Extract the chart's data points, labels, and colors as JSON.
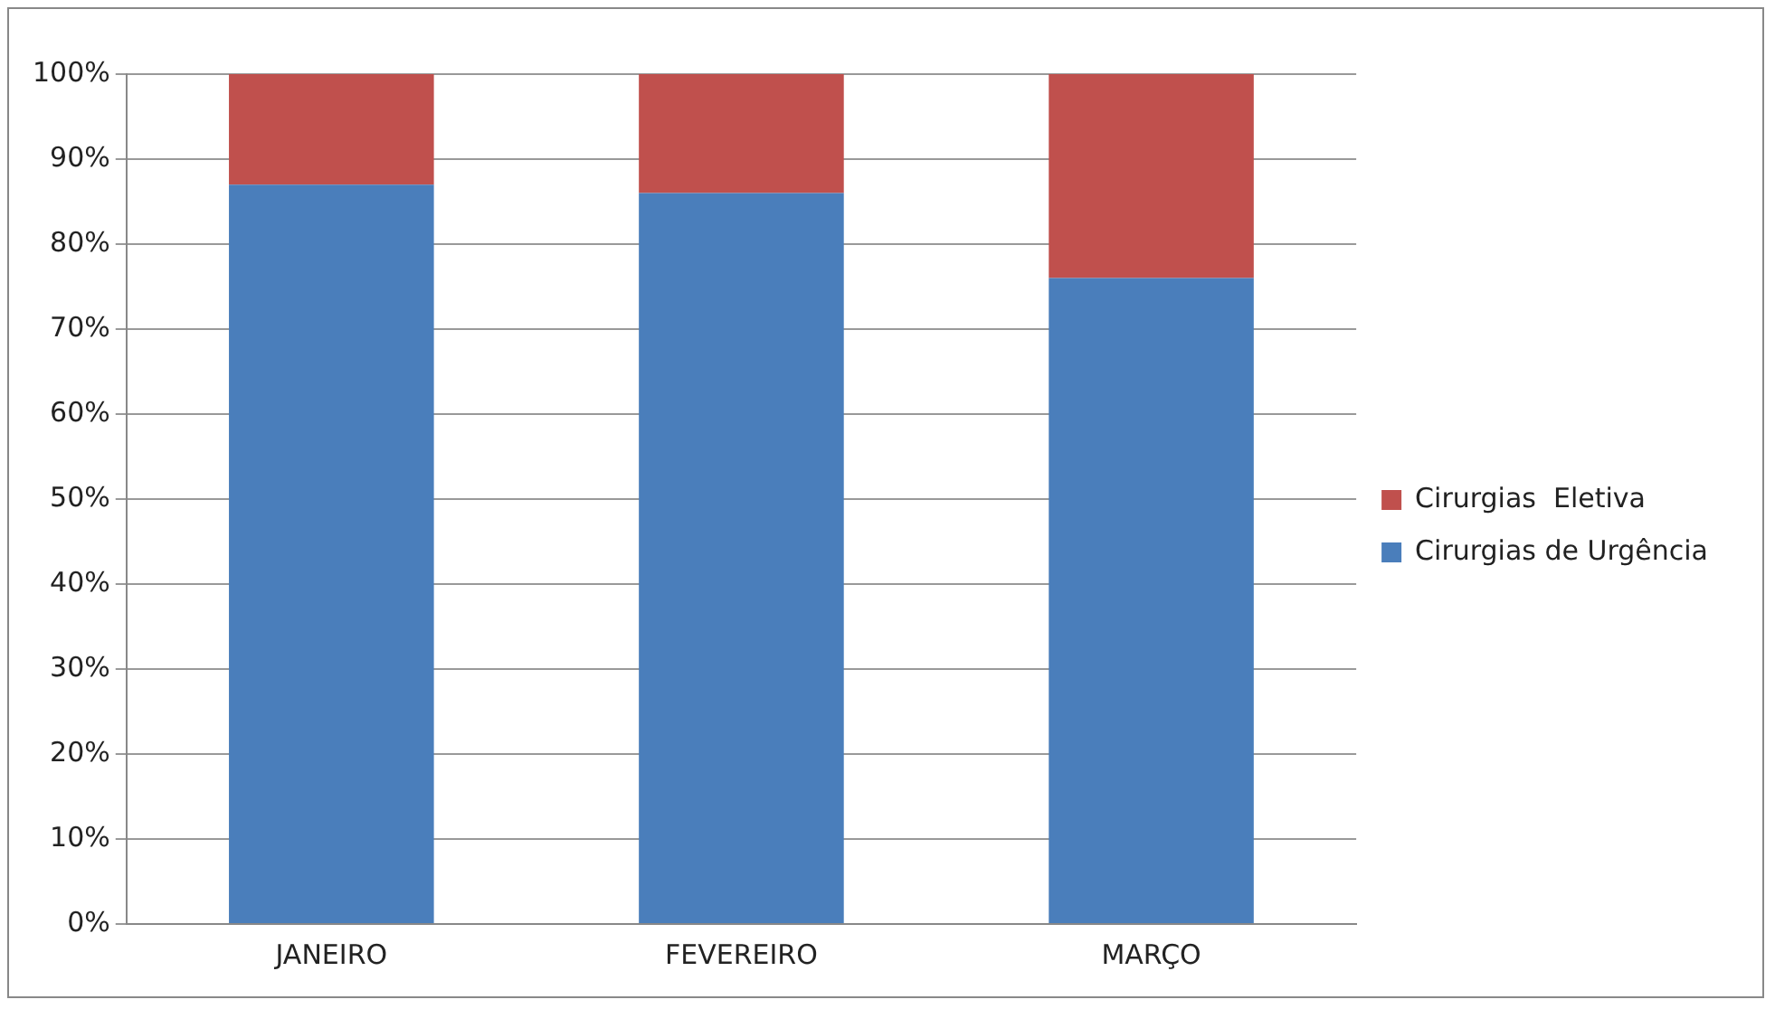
{
  "chart_data": {
    "type": "bar",
    "stacked": true,
    "categories": [
      "JANEIRO",
      "FEVEREIRO",
      "MARÇO"
    ],
    "series": [
      {
        "name": "Cirurgias de Urgência",
        "color": "#4a7ebb",
        "values": [
          87,
          86,
          76
        ]
      },
      {
        "name": "Cirurgias  Eletiva",
        "color": "#c0504d",
        "values": [
          13,
          14,
          24
        ]
      }
    ],
    "ylim": [
      0,
      100
    ],
    "yticks": [
      {
        "value": 0,
        "label": "0%"
      },
      {
        "value": 10,
        "label": "10%"
      },
      {
        "value": 20,
        "label": "20%"
      },
      {
        "value": 30,
        "label": "30%"
      },
      {
        "value": 40,
        "label": "40%"
      },
      {
        "value": 50,
        "label": "50%"
      },
      {
        "value": 60,
        "label": "60%"
      },
      {
        "value": 70,
        "label": "70%"
      },
      {
        "value": 80,
        "label": "80%"
      },
      {
        "value": 90,
        "label": "90%"
      },
      {
        "value": 100,
        "label": "100%"
      }
    ],
    "grid": "y",
    "legend": "right"
  }
}
